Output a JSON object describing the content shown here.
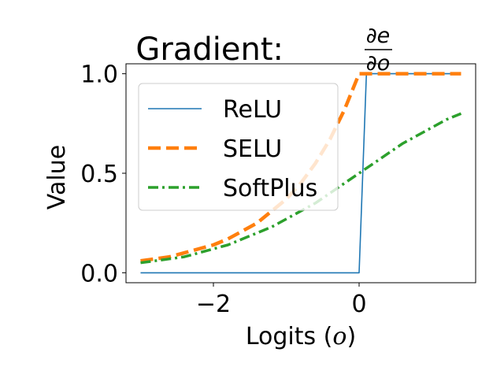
{
  "chart_data": {
    "type": "line",
    "title": {
      "prefix": "Gradient: ",
      "numerator": "∂e",
      "denominator": "∂o"
    },
    "xlabel": {
      "text": "Logits (",
      "var": "o",
      "close": ")"
    },
    "ylabel": "Value",
    "xlim": [
      -3.2,
      1.6
    ],
    "ylim": [
      -0.05,
      1.05
    ],
    "xticks": [
      {
        "value": -2,
        "label": "−2"
      },
      {
        "value": 0,
        "label": "0"
      }
    ],
    "yticks": [
      {
        "value": 0,
        "label": "0.0"
      },
      {
        "value": 0.5,
        "label": "0.5"
      },
      {
        "value": 1,
        "label": "1.0"
      }
    ],
    "grid": false,
    "legend_placement": "upper-left",
    "series": [
      {
        "name": "ReLU",
        "color": "#1f77b4",
        "style": "solid",
        "points": [
          [
            -3.0,
            0.0
          ],
          [
            0.0,
            0.0
          ],
          [
            0.1,
            1.0
          ],
          [
            1.4,
            1.0
          ]
        ]
      },
      {
        "name": "SELU",
        "color": "#ff7f0e",
        "style": "dashed",
        "points": [
          [
            -3.0,
            0.06
          ],
          [
            -2.8,
            0.07
          ],
          [
            -2.6,
            0.08
          ],
          [
            -2.4,
            0.1
          ],
          [
            -2.2,
            0.12
          ],
          [
            -2.0,
            0.14
          ],
          [
            -1.8,
            0.17
          ],
          [
            -1.6,
            0.21
          ],
          [
            -1.4,
            0.25
          ],
          [
            -1.2,
            0.31
          ],
          [
            -1.0,
            0.37
          ],
          [
            -0.8,
            0.45
          ],
          [
            -0.6,
            0.55
          ],
          [
            -0.4,
            0.67
          ],
          [
            -0.2,
            0.82
          ],
          [
            0.0,
            1.0
          ],
          [
            1.4,
            1.0
          ]
        ]
      },
      {
        "name": "SoftPlus",
        "color": "#2ca02c",
        "style": "dashdot",
        "points": [
          [
            -3.0,
            0.05
          ],
          [
            -2.8,
            0.06
          ],
          [
            -2.6,
            0.07
          ],
          [
            -2.4,
            0.08
          ],
          [
            -2.2,
            0.1
          ],
          [
            -2.0,
            0.12
          ],
          [
            -1.8,
            0.14
          ],
          [
            -1.6,
            0.17
          ],
          [
            -1.4,
            0.2
          ],
          [
            -1.2,
            0.23
          ],
          [
            -1.0,
            0.27
          ],
          [
            -0.8,
            0.31
          ],
          [
            -0.6,
            0.35
          ],
          [
            -0.4,
            0.4
          ],
          [
            -0.2,
            0.45
          ],
          [
            0.0,
            0.5
          ],
          [
            0.2,
            0.55
          ],
          [
            0.4,
            0.6
          ],
          [
            0.6,
            0.65
          ],
          [
            0.8,
            0.69
          ],
          [
            1.0,
            0.73
          ],
          [
            1.2,
            0.77
          ],
          [
            1.4,
            0.8
          ]
        ]
      }
    ]
  }
}
